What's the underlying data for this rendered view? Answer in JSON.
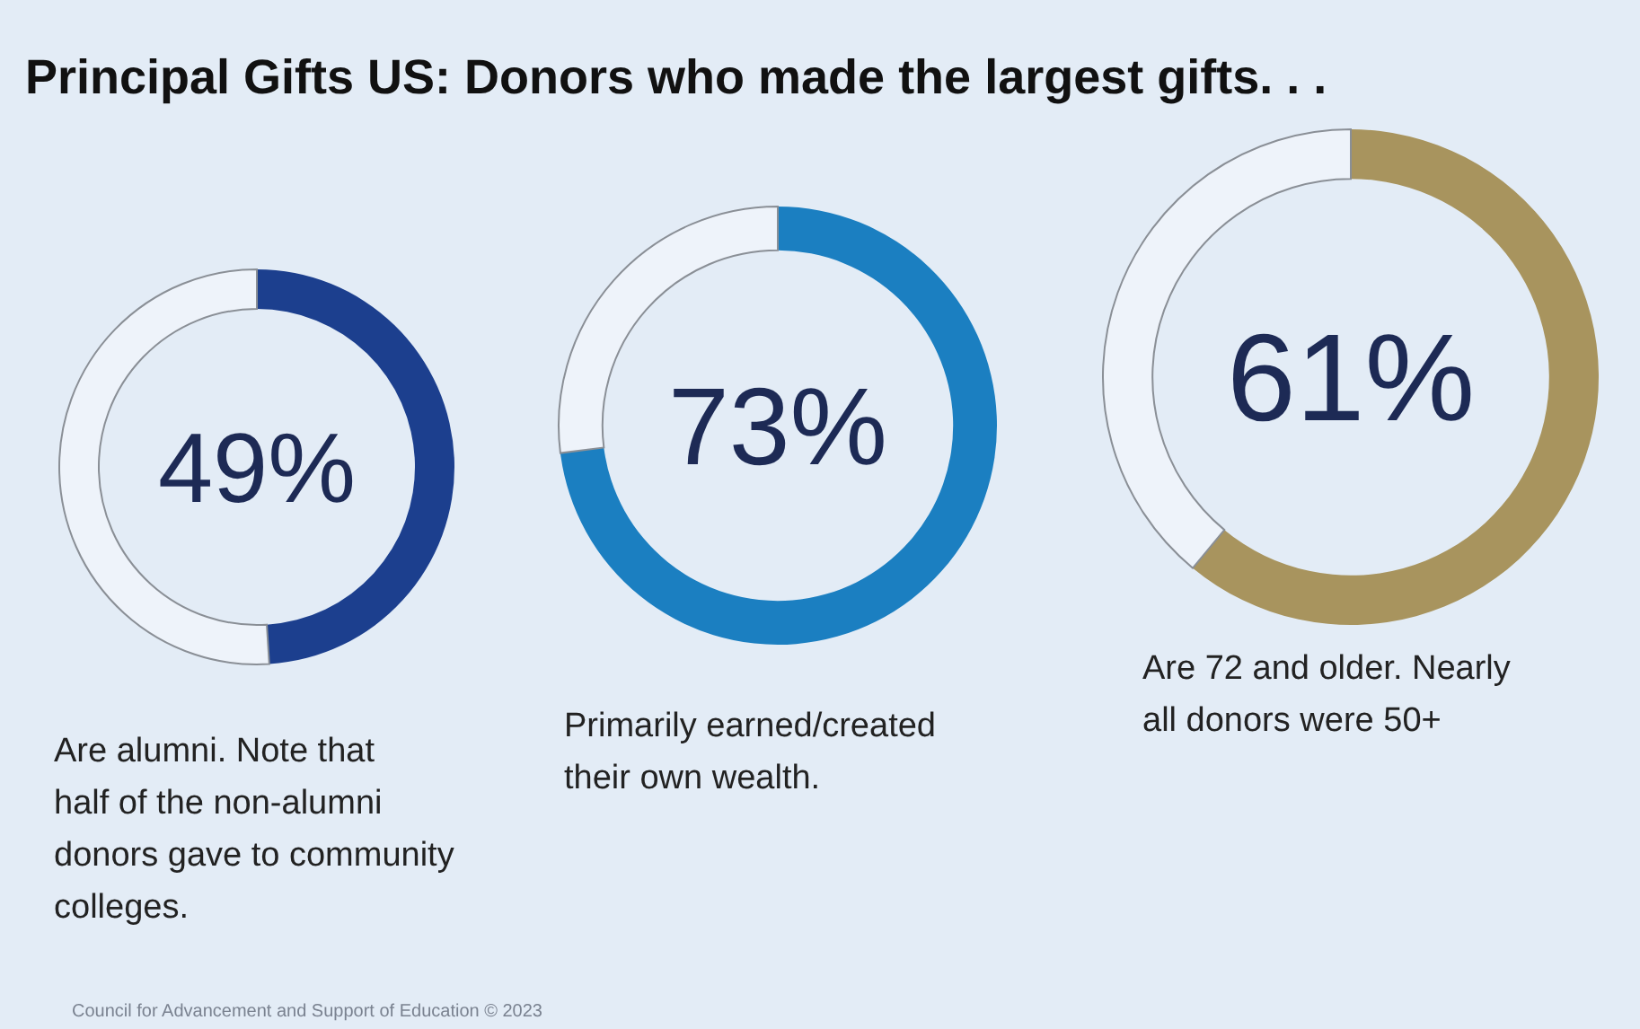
{
  "chart_data": [
    {
      "type": "donut",
      "title": "Principal Gifts US: Donors who made the largest gifts. . .",
      "categories": [
        null,
        null
      ],
      "values": [
        49,
        51
      ],
      "colors": [
        "#1c3f8e",
        "#eef3fa"
      ],
      "value_labels": [
        "49%",
        null
      ],
      "annotations": [
        "Are alumni.  Note that half of the non-alumni donors gave to community colleges.",
        "Council for Advancement and Support of Education © 2023"
      ]
    },
    {
      "type": "donut",
      "categories": [
        null,
        null
      ],
      "values": [
        73,
        27
      ],
      "colors": [
        "#1b7fc1",
        "#eef3fa"
      ],
      "value_labels": [
        "73%",
        null
      ],
      "annotations": [
        "Primarily earned/created their own wealth."
      ]
    },
    {
      "type": "donut",
      "categories": [
        null,
        null
      ],
      "values": [
        61,
        39
      ],
      "colors": [
        "#a8945e",
        "#eef3fa"
      ],
      "value_labels": [
        "61%",
        null
      ],
      "annotations": [
        "Are 72 and older.  Nearly all donors were 50+"
      ]
    }
  ]
}
